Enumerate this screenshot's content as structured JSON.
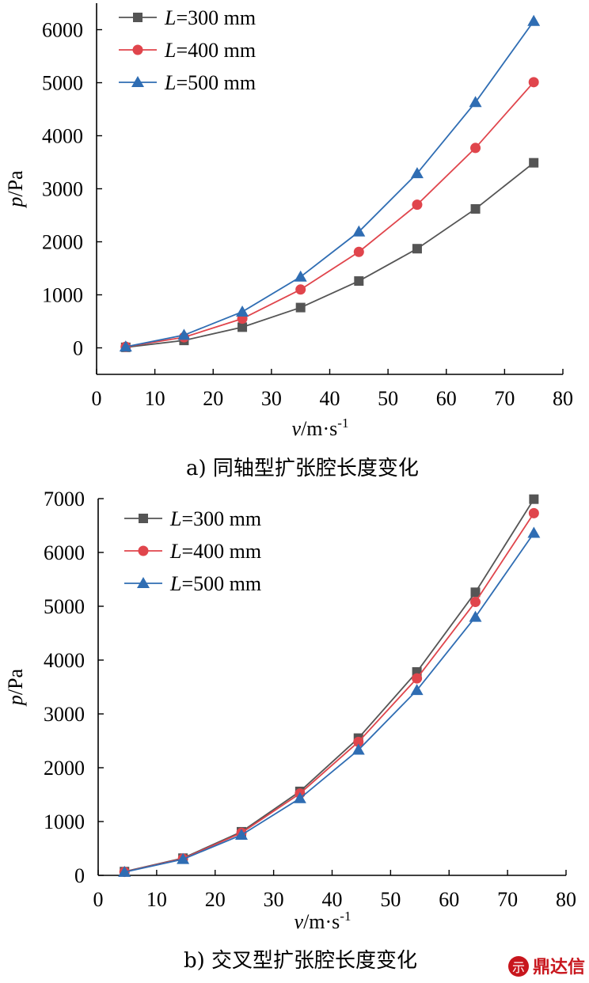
{
  "chart_data": [
    {
      "type": "line",
      "x_axis": {
        "label_var": "v",
        "label_unit": "/m·s",
        "label_exp": "-1",
        "ticks": [
          "0",
          "10",
          "20",
          "30",
          "40",
          "50",
          "60",
          "70",
          "80"
        ],
        "range": [
          0,
          80
        ]
      },
      "y_axis": {
        "label_var": "p",
        "label_unit": "/Pa",
        "ticks": [
          "0",
          "1000",
          "2000",
          "3000",
          "4000",
          "5000",
          "6000"
        ],
        "range": [
          -500,
          6500
        ]
      },
      "caption": "a)  同轴型扩张腔长度变化",
      "legend": {
        "position": "top-left"
      },
      "x": [
        5,
        15,
        25,
        35,
        45,
        55,
        65,
        75
      ],
      "series": [
        {
          "name_var": "L",
          "name_rest": "=300 mm",
          "marker": "square",
          "color": "#555555",
          "values": [
            10,
            140,
            390,
            760,
            1260,
            1870,
            2620,
            3490
          ]
        },
        {
          "name_var": "L",
          "name_rest": "=400 mm",
          "marker": "circle",
          "color": "#e0454c",
          "values": [
            20,
            200,
            550,
            1100,
            1810,
            2700,
            3770,
            5010
          ]
        },
        {
          "name_var": "L",
          "name_rest": "=500 mm",
          "marker": "triangle",
          "color": "#2f6db3",
          "values": [
            20,
            240,
            680,
            1340,
            2190,
            3290,
            4630,
            6160
          ]
        }
      ]
    },
    {
      "type": "line",
      "x_axis": {
        "label_var": "v",
        "label_unit": "/m·s",
        "label_exp": "-1",
        "ticks": [
          "0",
          "10",
          "20",
          "30",
          "40",
          "50",
          "60",
          "70",
          "80"
        ],
        "range": [
          0,
          80
        ]
      },
      "y_axis": {
        "label_var": "p",
        "label_unit": "/Pa",
        "ticks": [
          "0",
          "1000",
          "2000",
          "3000",
          "4000",
          "5000",
          "6000",
          "7000"
        ],
        "range": [
          0,
          7000
        ]
      },
      "caption": "b)  交叉型扩张腔长度变化",
      "legend": {
        "position": "top-left"
      },
      "x": [
        4.5,
        14.5,
        24.5,
        34.5,
        44.5,
        54.5,
        64.5,
        74.5
      ],
      "series": [
        {
          "name_var": "L",
          "name_rest": "=300 mm",
          "marker": "square",
          "color": "#555555",
          "values": [
            70,
            320,
            810,
            1560,
            2550,
            3780,
            5260,
            6990
          ]
        },
        {
          "name_var": "L",
          "name_rest": "=400 mm",
          "marker": "circle",
          "color": "#e0454c",
          "values": [
            65,
            310,
            790,
            1520,
            2480,
            3660,
            5080,
            6730
          ]
        },
        {
          "name_var": "L",
          "name_rest": "=500 mm",
          "marker": "triangle",
          "color": "#2f6db3",
          "values": [
            60,
            300,
            750,
            1430,
            2330,
            3440,
            4800,
            6360
          ]
        }
      ]
    }
  ],
  "watermark": {
    "text": "鼎达信",
    "color": "#c8161d"
  }
}
